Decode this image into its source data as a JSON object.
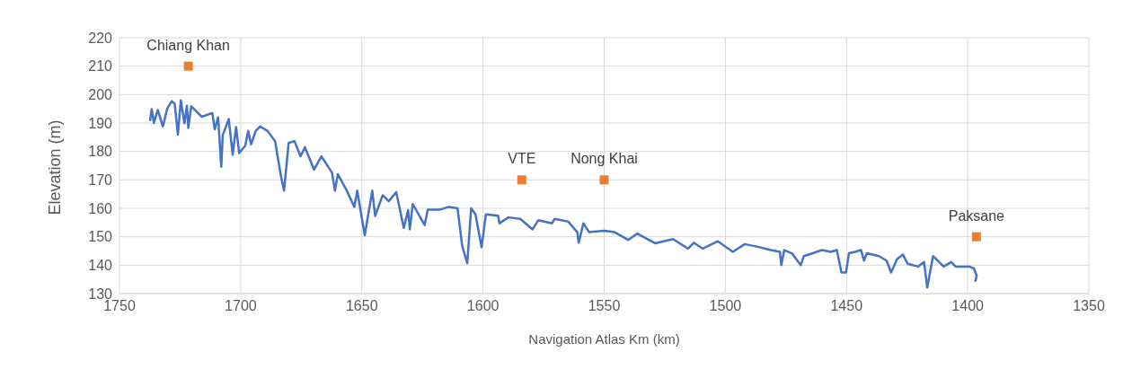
{
  "chart_data": {
    "type": "line",
    "xlabel": "Navigation Atlas Km (km)",
    "ylabel": "Elevation (m)",
    "xlim": [
      1750,
      1350
    ],
    "xticks": [
      1750,
      1700,
      1650,
      1600,
      1550,
      1500,
      1450,
      1400,
      1350
    ],
    "ylim": [
      130,
      220
    ],
    "yticks": [
      130,
      140,
      150,
      160,
      170,
      180,
      190,
      200,
      210,
      220
    ],
    "grid": true,
    "series": [
      {
        "color": "#4472c4",
        "marker": "none",
        "x": [
          1737.4,
          1736.7,
          1735.8,
          1734.2,
          1732.1,
          1730.3,
          1728.4,
          1727.2,
          1725.9,
          1724.7,
          1723.2,
          1722.2,
          1721.6,
          1720.4,
          1716,
          1711.7,
          1710.7,
          1709.3,
          1708,
          1707.4,
          1704.9,
          1703.3,
          1701.9,
          1700.6,
          1698.1,
          1696.9,
          1695.7,
          1693.8,
          1692,
          1688.9,
          1685.8,
          1683.3,
          1682.1,
          1680.2,
          1677.8,
          1675.3,
          1673.5,
          1669.7,
          1666.7,
          1662.3,
          1661.1,
          1659.9,
          1656.2,
          1653.1,
          1651.9,
          1648.8,
          1645.7,
          1644.5,
          1641.4,
          1638.9,
          1635.8,
          1632.7,
          1630.9,
          1630.2,
          1629,
          1624.1,
          1622.8,
          1617.9,
          1614.2,
          1610.5,
          1608.6,
          1606.5,
          1604.9,
          1603.1,
          1600.6,
          1598.8,
          1593.8,
          1593.2,
          1589.5,
          1584.6,
          1579.6,
          1577.2,
          1571.6,
          1570.4,
          1564.8,
          1561.1,
          1560.5,
          1558.6,
          1556.2,
          1550,
          1545.7,
          1540.1,
          1536.4,
          1529,
          1521.6,
          1515.4,
          1513,
          1509.3,
          1503.1,
          1496.9,
          1492,
          1485.8,
          1481.3,
          1477.5,
          1476.9,
          1475.7,
          1472.6,
          1468.9,
          1467.6,
          1463.9,
          1460.2,
          1456.5,
          1454,
          1452.1,
          1450.2,
          1449,
          1446.5,
          1444,
          1442.8,
          1441.6,
          1436.6,
          1433.5,
          1431.6,
          1429.2,
          1426.7,
          1424.8,
          1420.5,
          1418,
          1416.7,
          1414.3,
          1409.9,
          1406.8,
          1405,
          1399.4,
          1397.5,
          1396.3,
          1396.9
        ],
        "values": [
          190.7,
          194.9,
          190,
          194.6,
          188.8,
          195.1,
          197.7,
          196.7,
          185.9,
          198,
          189.9,
          196.1,
          188.3,
          195.9,
          192.2,
          193.5,
          187.8,
          192,
          174.6,
          185.7,
          191.4,
          178.8,
          188.6,
          179.4,
          182,
          187.2,
          182.5,
          187.2,
          188.8,
          187.2,
          183.6,
          171,
          166.2,
          183,
          183.6,
          178.3,
          181.5,
          173.6,
          178.3,
          172.5,
          166.2,
          172,
          166.2,
          160.5,
          166.2,
          150.5,
          166.2,
          157.3,
          164.6,
          162.5,
          165.7,
          153.1,
          159.4,
          152.6,
          161.5,
          154.1,
          159.5,
          159.5,
          160.5,
          160,
          146.8,
          140.7,
          160,
          157.9,
          146.3,
          157.9,
          157.4,
          154.7,
          156.8,
          156.3,
          152.6,
          155.8,
          154.7,
          156.3,
          155.3,
          151.6,
          147.9,
          154.7,
          151.6,
          152.1,
          151.6,
          148.9,
          151.1,
          147.7,
          149.2,
          145.8,
          147.9,
          145.8,
          148.4,
          144.7,
          147.4,
          146.3,
          145.3,
          144.7,
          140,
          145.3,
          144.2,
          140,
          143.2,
          144.2,
          145.3,
          144.7,
          145.3,
          137.4,
          137.4,
          144.2,
          144.7,
          145.3,
          141.6,
          144.2,
          143.2,
          141.6,
          137.4,
          142.1,
          143.7,
          140.5,
          139.5,
          141.1,
          132.1,
          143.2,
          139.5,
          141.1,
          139.5,
          139.5,
          138.9,
          136.3,
          134.2
        ]
      },
      {
        "type": "scatter",
        "color": "#ed7d31",
        "marker": "square",
        "x": [
          1721.6,
          1584,
          1550,
          1396.4
        ],
        "values": [
          210,
          170,
          170,
          150
        ]
      }
    ],
    "annotations": [
      {
        "text": "Chiang Khan",
        "x": 1721.6,
        "y": 210
      },
      {
        "text": "VTE",
        "x": 1584,
        "y": 170
      },
      {
        "text": "Nong Khai",
        "x": 1550,
        "y": 170
      },
      {
        "text": "Paksane",
        "x": 1396.4,
        "y": 150
      }
    ]
  }
}
